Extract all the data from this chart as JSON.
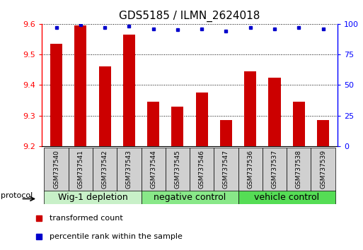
{
  "title": "GDS5185 / ILMN_2624018",
  "samples": [
    "GSM737540",
    "GSM737541",
    "GSM737542",
    "GSM737543",
    "GSM737544",
    "GSM737545",
    "GSM737546",
    "GSM737547",
    "GSM737536",
    "GSM737537",
    "GSM737538",
    "GSM737539"
  ],
  "red_values": [
    9.535,
    9.595,
    9.46,
    9.565,
    9.345,
    9.33,
    9.375,
    9.285,
    9.445,
    9.425,
    9.345,
    9.285
  ],
  "blue_values": [
    97,
    99,
    97,
    98,
    96,
    95,
    96,
    94,
    97,
    96,
    97,
    96
  ],
  "ylim_left": [
    9.2,
    9.6
  ],
  "ylim_right": [
    0,
    100
  ],
  "yticks_left": [
    9.2,
    9.3,
    9.4,
    9.5,
    9.6
  ],
  "yticks_right": [
    0,
    25,
    50,
    75,
    100
  ],
  "groups": [
    {
      "label": "Wig-1 depletion",
      "start": 0,
      "end": 3,
      "color": "#c8f0c8"
    },
    {
      "label": "negative control",
      "start": 4,
      "end": 7,
      "color": "#88e888"
    },
    {
      "label": "vehicle control",
      "start": 8,
      "end": 11,
      "color": "#55dd55"
    }
  ],
  "red_color": "#cc0000",
  "blue_color": "#0000cc",
  "bar_width": 0.5,
  "base_value": 9.2,
  "legend_red": "transformed count",
  "legend_blue": "percentile rank within the sample",
  "protocol_label": "protocol",
  "title_fontsize": 11,
  "tick_fontsize": 8,
  "sample_fontsize": 6.5,
  "group_fontsize": 9,
  "legend_fontsize": 8
}
